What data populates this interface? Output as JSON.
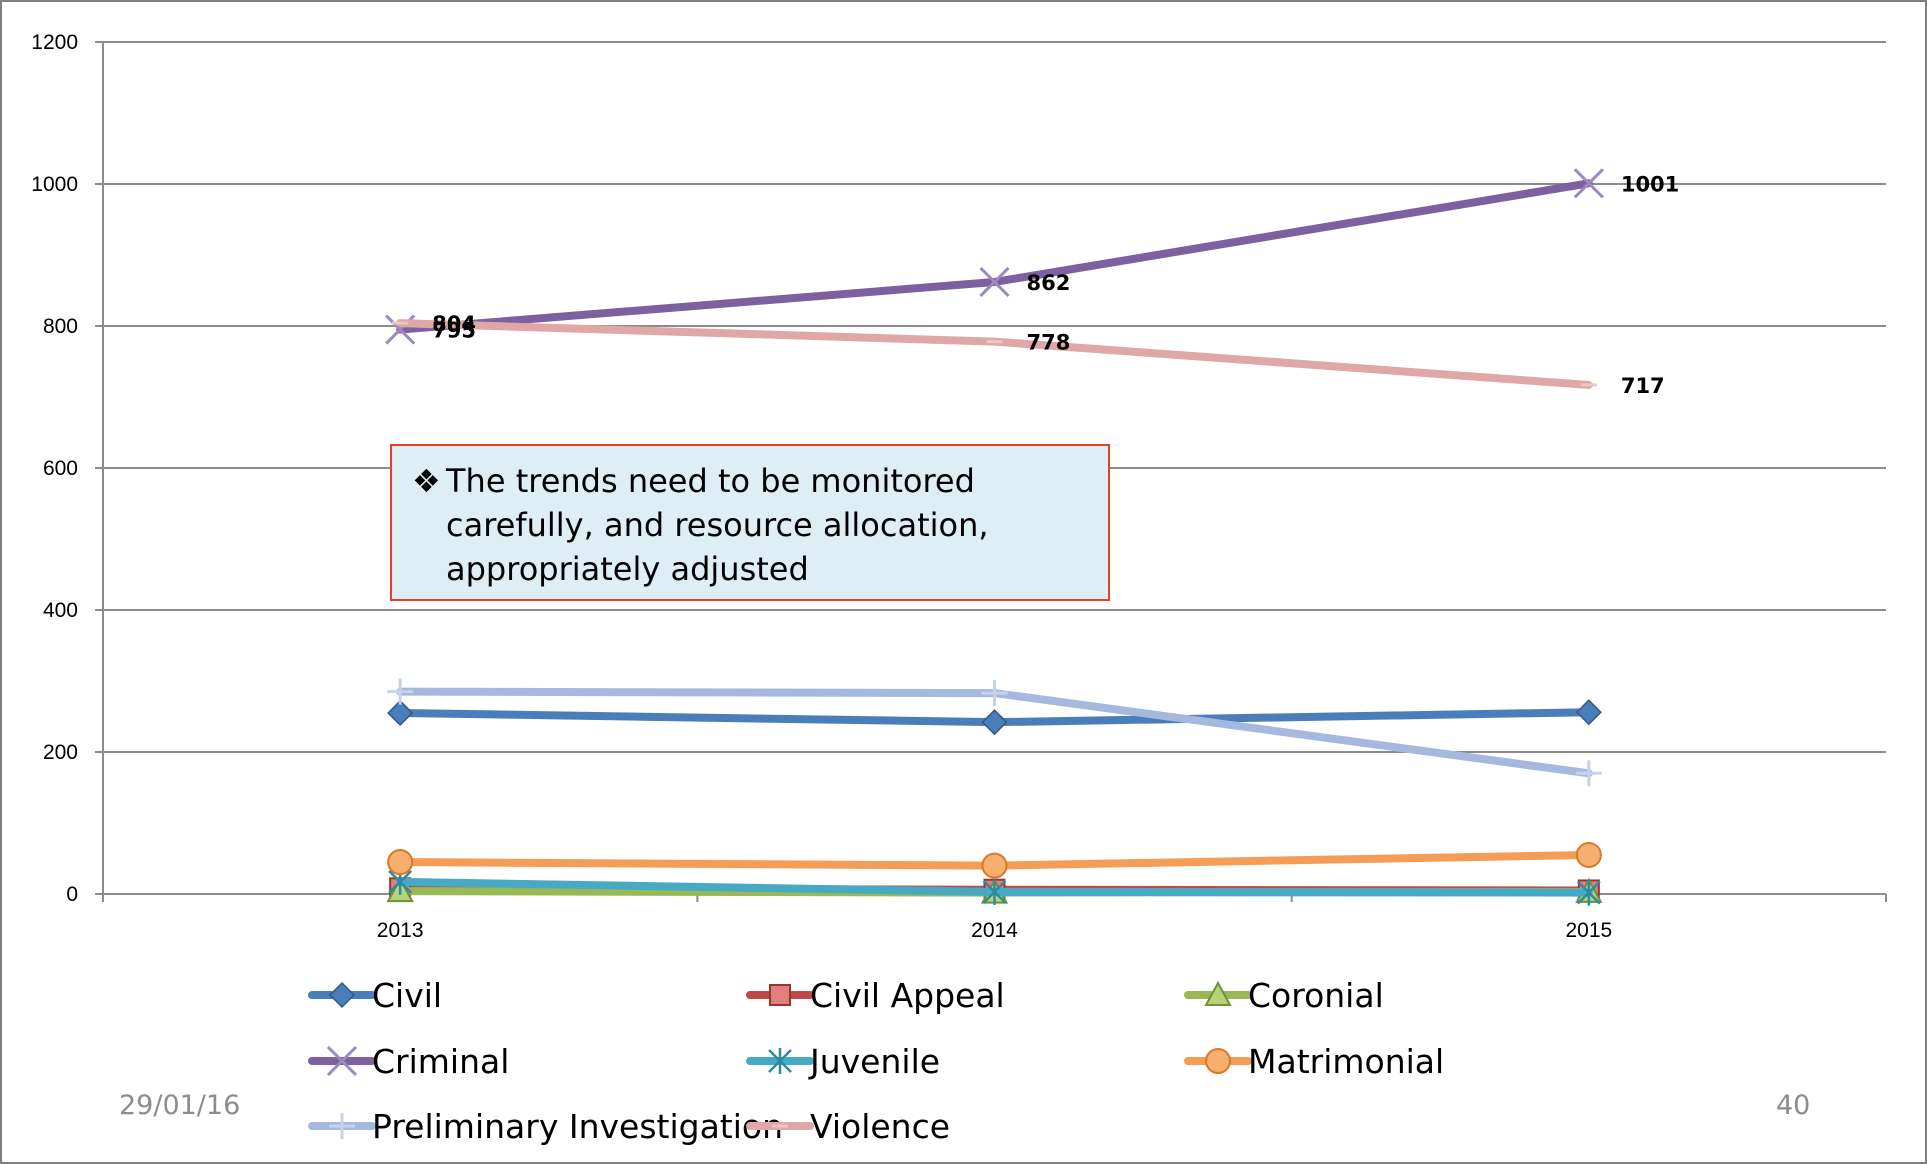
{
  "chart_data": {
    "type": "line",
    "categories": [
      "2013",
      "2014",
      "2015"
    ],
    "ylim": [
      0,
      1200
    ],
    "yticks": [
      "0",
      "200",
      "400",
      "600",
      "800",
      "1000",
      "1200"
    ],
    "grid": true,
    "legend_position": "bottom",
    "series": [
      {
        "name": "Civil",
        "values": [
          255,
          242,
          256
        ],
        "color": "#4a7ebb",
        "marker": "diamond",
        "labels": null
      },
      {
        "name": "Civil Appeal",
        "values": [
          8,
          6,
          5
        ],
        "color": "#be4b48",
        "marker": "square",
        "labels": null
      },
      {
        "name": "Coronial",
        "values": [
          4,
          2,
          3
        ],
        "color": "#98b954",
        "marker": "triangle",
        "labels": null
      },
      {
        "name": "Criminal",
        "values": [
          795,
          862,
          1001
        ],
        "color": "#7d60a0",
        "marker": "x",
        "labels": [
          "795",
          "862",
          "1001"
        ]
      },
      {
        "name": "Juvenile",
        "values": [
          17,
          3,
          2
        ],
        "color": "#46aac4",
        "marker": "star",
        "labels": null
      },
      {
        "name": "Matrimonial",
        "values": [
          45,
          40,
          55
        ],
        "color": "#f59d56",
        "marker": "circle",
        "labels": null
      },
      {
        "name": "Preliminary Investigation",
        "values": [
          285,
          283,
          170
        ],
        "color": "#a5b9de",
        "marker": "plus",
        "labels": null
      },
      {
        "name": "Violence",
        "values": [
          804,
          778,
          717
        ],
        "color": "#dfa7a6",
        "marker": "dash",
        "labels": [
          "804",
          "778",
          "717"
        ]
      }
    ]
  },
  "note": {
    "bullet": "❖",
    "lines": [
      "The trends need to be monitored",
      "carefully, and resource allocation,",
      "appropriately adjusted"
    ]
  },
  "footer": {
    "date": "29/01/16",
    "page_number": "40"
  }
}
